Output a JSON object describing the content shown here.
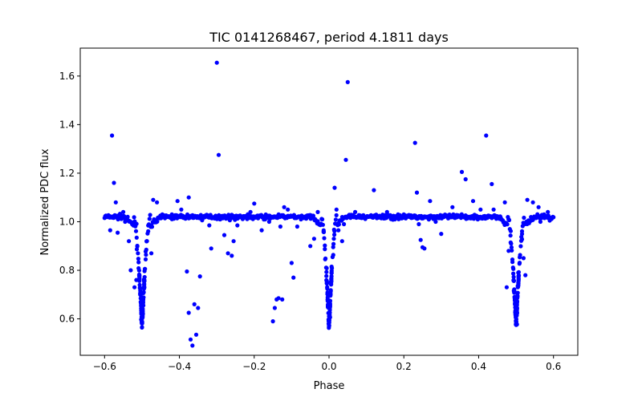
{
  "chart_data": {
    "type": "scatter",
    "title": "TIC 0141268467, period 4.1811 days",
    "xlabel": "Phase",
    "ylabel": "Normalized PDC flux",
    "xlim": [
      -0.665,
      0.665
    ],
    "ylim": [
      0.45,
      1.715
    ],
    "x_ticks": [
      -0.6,
      -0.4,
      -0.2,
      0.0,
      0.2,
      0.4,
      0.6
    ],
    "x_tick_labels": [
      "−0.6",
      "−0.4",
      "−0.2",
      "0.0",
      "0.2",
      "0.4",
      "0.6"
    ],
    "y_ticks": [
      0.6,
      0.8,
      1.0,
      1.2,
      1.4,
      1.6
    ],
    "y_tick_labels": [
      "0.6",
      "0.8",
      "1.0",
      "1.2",
      "1.4",
      "1.6"
    ],
    "grid": false,
    "legend": "none",
    "marker_color": "#0000ff",
    "series": [
      {
        "baseline": 1.02,
        "baseline_scatter": 0.008,
        "phase_range": [
          -0.6,
          0.6
        ],
        "primary_eclipses": [
          {
            "center": -0.5,
            "min_flux": 0.57,
            "half_width": 0.022
          },
          {
            "center": 0.5,
            "min_flux": 0.57,
            "half_width": 0.022
          }
        ],
        "secondary_eclipse": {
          "center": 0.0,
          "min_flux": 0.56,
          "half_width": 0.02
        },
        "outliers": [
          [
            -0.58,
            1.355
          ],
          [
            -0.575,
            1.16
          ],
          [
            -0.585,
            0.965
          ],
          [
            -0.565,
            0.955
          ],
          [
            -0.57,
            1.08
          ],
          [
            -0.55,
            1.04
          ],
          [
            -0.545,
            1.0
          ],
          [
            -0.535,
            0.92
          ],
          [
            -0.53,
            0.8
          ],
          [
            -0.52,
            0.73
          ],
          [
            -0.515,
            0.76
          ],
          [
            -0.475,
            0.87
          ],
          [
            -0.47,
            1.09
          ],
          [
            -0.46,
            1.08
          ],
          [
            -0.42,
            1.03
          ],
          [
            -0.405,
            1.085
          ],
          [
            -0.395,
            1.05
          ],
          [
            -0.38,
            0.795
          ],
          [
            -0.375,
            0.625
          ],
          [
            -0.37,
            0.515
          ],
          [
            -0.365,
            0.49
          ],
          [
            -0.375,
            1.1
          ],
          [
            -0.36,
            0.66
          ],
          [
            -0.355,
            0.535
          ],
          [
            -0.35,
            0.645
          ],
          [
            -0.345,
            0.775
          ],
          [
            -0.32,
            0.985
          ],
          [
            -0.315,
            0.89
          ],
          [
            -0.3,
            1.655
          ],
          [
            -0.295,
            1.275
          ],
          [
            -0.28,
            0.945
          ],
          [
            -0.27,
            0.87
          ],
          [
            -0.26,
            0.86
          ],
          [
            -0.255,
            0.92
          ],
          [
            -0.245,
            0.985
          ],
          [
            -0.21,
            1.04
          ],
          [
            -0.2,
            1.075
          ],
          [
            -0.18,
            0.965
          ],
          [
            -0.16,
            1.0
          ],
          [
            -0.15,
            0.59
          ],
          [
            -0.145,
            0.645
          ],
          [
            -0.14,
            0.68
          ],
          [
            -0.135,
            0.685
          ],
          [
            -0.125,
            0.68
          ],
          [
            -0.13,
            0.98
          ],
          [
            -0.12,
            1.06
          ],
          [
            -0.11,
            1.05
          ],
          [
            -0.1,
            0.83
          ],
          [
            -0.095,
            0.77
          ],
          [
            -0.085,
            0.98
          ],
          [
            -0.075,
            1.01
          ],
          [
            -0.05,
            0.9
          ],
          [
            -0.04,
            0.93
          ],
          [
            -0.03,
            1.04
          ],
          [
            0.015,
            1.14
          ],
          [
            0.02,
            1.05
          ],
          [
            0.025,
            0.965
          ],
          [
            0.035,
            0.92
          ],
          [
            0.04,
            0.99
          ],
          [
            0.045,
            1.255
          ],
          [
            0.05,
            1.575
          ],
          [
            0.07,
            1.04
          ],
          [
            0.12,
            1.13
          ],
          [
            0.155,
            1.04
          ],
          [
            0.2,
            1.03
          ],
          [
            0.23,
            1.325
          ],
          [
            0.235,
            1.12
          ],
          [
            0.24,
            0.99
          ],
          [
            0.245,
            0.925
          ],
          [
            0.25,
            0.895
          ],
          [
            0.255,
            0.89
          ],
          [
            0.27,
            1.085
          ],
          [
            0.285,
            1.0
          ],
          [
            0.3,
            0.95
          ],
          [
            0.33,
            1.06
          ],
          [
            0.355,
            1.205
          ],
          [
            0.365,
            1.175
          ],
          [
            0.385,
            1.085
          ],
          [
            0.405,
            1.05
          ],
          [
            0.42,
            1.355
          ],
          [
            0.435,
            1.155
          ],
          [
            0.44,
            1.05
          ],
          [
            0.47,
            1.08
          ],
          [
            0.475,
            0.73
          ],
          [
            0.48,
            0.88
          ],
          [
            0.52,
            0.85
          ],
          [
            0.525,
            0.78
          ],
          [
            0.53,
            1.09
          ],
          [
            0.545,
            1.08
          ],
          [
            0.56,
            1.06
          ],
          [
            0.565,
            1.0
          ],
          [
            0.575,
            1.03
          ],
          [
            0.585,
            1.04
          ],
          [
            0.59,
            1.005
          ]
        ]
      }
    ]
  }
}
